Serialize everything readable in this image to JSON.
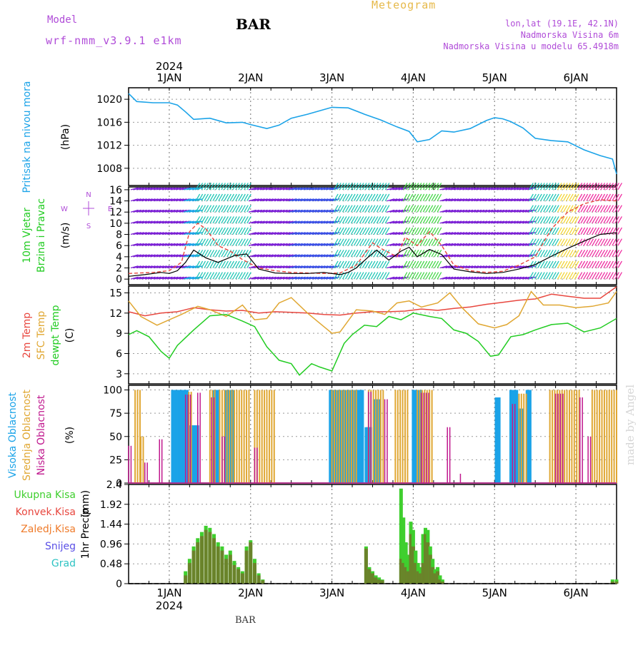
{
  "header": {
    "model_label": "Model",
    "model_name": "wrf-nmm_v3.9.1 e1km",
    "station": "BAR",
    "title": "Meteogram",
    "location": "lon,lat (19.1E, 42.1N)",
    "elevation": "Nadmorska Visina 6m",
    "model_elevation": "Nadmorska Visina u modelu 65.4918m"
  },
  "footer": {
    "station": "BAR",
    "credit": "made by Angel"
  },
  "time_axis": {
    "year": "2024",
    "day_labels": [
      "1JAN",
      "2JAN",
      "3JAN",
      "4JAN",
      "5JAN",
      "6JAN"
    ],
    "day_positions": [
      1,
      2,
      3,
      4,
      5,
      6
    ],
    "range": [
      0.5,
      6.5
    ]
  },
  "colors": {
    "pressure": "#1ba3e8",
    "wind_label": "#22cc22",
    "t2m": "#e8473f",
    "tsfc": "#e0a732",
    "dewpt": "#22cc22",
    "cloud_high": "#1ba3e8",
    "cloud_mid": "#e0a732",
    "cloud_low": "#c0188e",
    "rain_total": "#3fcf2e",
    "rain_conv": "#e8473f",
    "rain_frozen": "#ef7b2a",
    "snow": "#5a4fe6",
    "hail": "#2ec3c3",
    "compass": "#b04cd8"
  },
  "chart_data": [
    {
      "type": "line",
      "panel": "pressure",
      "ylabel_main": "Pritisak na nivou mora",
      "ylabel_unit": "(hPa)",
      "ylim": [
        1005,
        1022
      ],
      "yticks": [
        1008,
        1012,
        1016,
        1020
      ],
      "grid": true,
      "series": [
        {
          "x": [
            0.5,
            0.6,
            0.8,
            1.0,
            1.1,
            1.2,
            1.3,
            1.5,
            1.7,
            1.9,
            2.0,
            2.2,
            2.35,
            2.5,
            2.7,
            2.9,
            3.0,
            3.2,
            3.4,
            3.6,
            3.8,
            3.95,
            4.05,
            4.2,
            4.35,
            4.5,
            4.7,
            4.9,
            5.0,
            5.1,
            5.2,
            5.35,
            5.5,
            5.7,
            5.9,
            6.1,
            6.3,
            6.45,
            6.5
          ],
          "y": [
            1021,
            1019.6,
            1019.4,
            1019.4,
            1019,
            1017.8,
            1016.5,
            1016.7,
            1015.9,
            1016,
            1015.6,
            1014.9,
            1015.5,
            1016.7,
            1017.4,
            1018.2,
            1018.6,
            1018.5,
            1017.4,
            1016.4,
            1015.2,
            1014.4,
            1012.6,
            1013,
            1014.5,
            1014.3,
            1014.9,
            1016.3,
            1016.8,
            1016.6,
            1016.1,
            1015,
            1013.2,
            1012.8,
            1012.6,
            1011.2,
            1010.2,
            1009.6,
            1007
          ]
        }
      ]
    },
    {
      "type": "line",
      "panel": "wind",
      "ylabel_main": "10m Vjetar",
      "ylabel_main2": "Brzina i Pravac",
      "ylabel_unit": "(m/s)",
      "compass_n": "N",
      "compass_w": "W",
      "compass_e": "E",
      "compass_s": "S",
      "ylim": [
        -1,
        16.5
      ],
      "yticks": [
        0,
        2,
        4,
        6,
        8,
        10,
        12,
        14,
        16
      ],
      "grid": true,
      "series": [
        {
          "name": "speed",
          "x": [
            0.5,
            0.7,
            0.9,
            1.0,
            1.1,
            1.2,
            1.3,
            1.45,
            1.6,
            1.8,
            1.95,
            2.1,
            2.3,
            2.5,
            2.7,
            2.9,
            3.1,
            3.2,
            3.3,
            3.45,
            3.55,
            3.7,
            3.85,
            3.95,
            4.05,
            4.2,
            4.35,
            4.5,
            4.7,
            4.9,
            5.1,
            5.3,
            5.5,
            5.7,
            5.9,
            6.1,
            6.3,
            6.5
          ],
          "y": [
            0.5,
            0.8,
            1.2,
            1.0,
            1.5,
            3.0,
            5.2,
            3.8,
            3.0,
            4.2,
            4.5,
            1.8,
            1.1,
            1.0,
            1.0,
            1.2,
            0.8,
            1.2,
            2.0,
            4.0,
            5.2,
            3.4,
            5.0,
            5.7,
            4.0,
            5.3,
            4.4,
            1.8,
            1.3,
            1.0,
            1.2,
            1.8,
            2.6,
            4.1,
            5.5,
            6.8,
            8.0,
            8.3
          ]
        },
        {
          "name": "gust",
          "x": [
            0.5,
            0.8,
            1.0,
            1.15,
            1.25,
            1.35,
            1.45,
            1.6,
            1.75,
            1.9,
            2.1,
            2.3,
            2.5,
            2.7,
            2.9,
            3.1,
            3.3,
            3.5,
            3.6,
            3.8,
            3.9,
            4.05,
            4.2,
            4.35,
            4.5,
            4.7,
            4.9,
            5.1,
            5.3,
            5.5,
            5.7,
            5.9,
            6.1,
            6.3,
            6.5
          ],
          "y": [
            1.0,
            1.2,
            1.5,
            3.0,
            8.5,
            10.0,
            9.0,
            6.0,
            5.0,
            3.5,
            2.0,
            1.5,
            1.2,
            1.1,
            1.0,
            1.1,
            2.5,
            6.5,
            5.5,
            4.0,
            7.5,
            6.0,
            8.5,
            6.0,
            2.5,
            1.5,
            1.2,
            1.4,
            2.5,
            4.0,
            9.0,
            12.0,
            13.5,
            14.2,
            14.0
          ]
        }
      ],
      "barb_bands": [
        {
          "x0": 0.5,
          "x1": 1.15,
          "color": "#7b1fd6"
        },
        {
          "x0": 1.15,
          "x1": 1.3,
          "color": "#1ba3e8"
        },
        {
          "x0": 1.3,
          "x1": 1.95,
          "color": "#22c7b6"
        },
        {
          "x0": 1.95,
          "x1": 2.45,
          "color": "#7b1fd6"
        },
        {
          "x0": 2.45,
          "x1": 3.0,
          "color": "#3a4fe6"
        },
        {
          "x0": 3.0,
          "x1": 3.65,
          "color": "#22c7b6"
        },
        {
          "x0": 3.65,
          "x1": 3.85,
          "color": "#7b1fd6"
        },
        {
          "x0": 3.85,
          "x1": 4.3,
          "color": "#46d84a"
        },
        {
          "x0": 4.3,
          "x1": 5.4,
          "color": "#7b1fd6"
        },
        {
          "x0": 5.4,
          "x1": 5.75,
          "color": "#22c7b6"
        },
        {
          "x0": 5.75,
          "x1": 6.0,
          "color": "#f2d63a"
        },
        {
          "x0": 6.0,
          "x1": 6.5,
          "color": "#ef2fa2"
        }
      ]
    },
    {
      "type": "line",
      "panel": "temperature",
      "ylabel_main": "2m Temp",
      "ylabel_main2": "SFC Temp",
      "ylabel_main3": "dewpt Temp",
      "ylabel_unit": "(C)",
      "ylim": [
        1.5,
        16
      ],
      "yticks": [
        3,
        6,
        9,
        12,
        15
      ],
      "grid": true,
      "series": [
        {
          "name": "2m",
          "x": [
            0.5,
            0.7,
            0.9,
            1.1,
            1.3,
            1.5,
            1.7,
            1.9,
            2.1,
            2.3,
            2.5,
            2.7,
            2.9,
            3.1,
            3.3,
            3.5,
            3.7,
            3.9,
            4.1,
            4.3,
            4.5,
            4.7,
            4.9,
            5.1,
            5.3,
            5.5,
            5.7,
            5.9,
            6.1,
            6.3,
            6.5
          ],
          "y": [
            12.2,
            11.6,
            12.0,
            12.2,
            12.8,
            12.5,
            12.3,
            12.4,
            12.0,
            12.2,
            12.1,
            12.0,
            11.8,
            11.7,
            12.0,
            12.2,
            12.2,
            12.3,
            12.6,
            12.4,
            12.7,
            12.9,
            13.3,
            13.6,
            13.9,
            14.1,
            14.8,
            14.5,
            14.2,
            14.2,
            15.9
          ]
        },
        {
          "name": "sfc",
          "x": [
            0.5,
            0.65,
            0.85,
            1.0,
            1.15,
            1.35,
            1.5,
            1.7,
            1.9,
            2.05,
            2.2,
            2.35,
            2.5,
            2.7,
            2.9,
            3.0,
            3.1,
            3.3,
            3.5,
            3.65,
            3.8,
            3.95,
            4.1,
            4.3,
            4.45,
            4.6,
            4.8,
            5.0,
            5.15,
            5.3,
            5.45,
            5.6,
            5.8,
            6.0,
            6.2,
            6.4,
            6.5
          ],
          "y": [
            13.8,
            11.5,
            10.2,
            11.0,
            11.8,
            13.0,
            12.5,
            11.5,
            13.2,
            11.0,
            11.2,
            13.5,
            14.3,
            12.0,
            10.0,
            9.0,
            9.2,
            12.5,
            12.3,
            11.8,
            13.5,
            13.8,
            12.9,
            13.5,
            15.0,
            12.8,
            10.4,
            9.8,
            10.3,
            11.6,
            15.2,
            13.2,
            13.2,
            12.8,
            13.0,
            13.5,
            15.2
          ]
        },
        {
          "name": "dewpt",
          "x": [
            0.5,
            0.6,
            0.75,
            0.9,
            1.0,
            1.1,
            1.3,
            1.5,
            1.7,
            1.9,
            2.05,
            2.2,
            2.35,
            2.5,
            2.6,
            2.75,
            2.85,
            3.0,
            3.15,
            3.25,
            3.4,
            3.55,
            3.7,
            3.85,
            4.0,
            4.2,
            4.35,
            4.5,
            4.65,
            4.8,
            4.95,
            5.05,
            5.2,
            5.35,
            5.5,
            5.7,
            5.9,
            6.1,
            6.3,
            6.5
          ],
          "y": [
            8.8,
            9.4,
            8.5,
            6.3,
            5.3,
            7.2,
            9.5,
            11.6,
            11.8,
            10.8,
            10.0,
            7.0,
            5.0,
            4.5,
            2.8,
            4.5,
            4.0,
            3.4,
            7.5,
            8.8,
            10.2,
            10.0,
            11.5,
            11.0,
            12.0,
            11.5,
            11.2,
            9.5,
            9.0,
            7.8,
            5.6,
            5.8,
            8.5,
            8.8,
            9.5,
            10.3,
            10.5,
            9.2,
            9.8,
            11.2
          ]
        }
      ]
    },
    {
      "type": "bar",
      "panel": "cloud",
      "ylabel_main": "Visoka Oblacnost",
      "ylabel_main2": "Srednja Oblacnost",
      "ylabel_main3": "Niska  Oblacnost",
      "ylabel_unit": "(%)",
      "ylim": [
        0,
        105
      ],
      "yticks": [
        0,
        25,
        50,
        75,
        100
      ],
      "grid": true,
      "series": [
        {
          "name": "high",
          "segments": [
            [
              1.04,
              1.22,
              100
            ],
            [
              1.26,
              1.36,
              62
            ],
            [
              1.55,
              1.62,
              100
            ],
            [
              1.7,
              1.8,
              100
            ],
            [
              2.98,
              3.38,
              100
            ],
            [
              3.42,
              3.48,
              60
            ],
            [
              3.52,
              3.58,
              90
            ],
            [
              4.0,
              4.1,
              100
            ],
            [
              5.02,
              5.06,
              92
            ],
            [
              5.2,
              5.28,
              100
            ],
            [
              5.3,
              5.35,
              80
            ],
            [
              5.4,
              5.45,
              100
            ]
          ]
        },
        {
          "name": "mid",
          "segments": [
            [
              0.58,
              0.64,
              100
            ],
            [
              0.65,
              0.68,
              50
            ],
            [
              1.24,
              1.29,
              98
            ],
            [
              1.5,
              1.58,
              100
            ],
            [
              1.62,
              2.0,
              100
            ],
            [
              2.05,
              2.3,
              100
            ],
            [
              3.0,
              3.32,
              100
            ],
            [
              3.45,
              3.65,
              100
            ],
            [
              3.78,
              3.95,
              100
            ],
            [
              4.05,
              4.25,
              100
            ],
            [
              5.3,
              5.4,
              96
            ],
            [
              5.68,
              6.05,
              100
            ],
            [
              6.2,
              6.5,
              100
            ]
          ]
        },
        {
          "name": "low",
          "segments": [
            [
              0.5,
              0.55,
              40
            ],
            [
              0.7,
              0.74,
              22
            ],
            [
              0.88,
              0.92,
              47
            ],
            [
              1.2,
              1.26,
              95
            ],
            [
              1.35,
              1.4,
              97
            ],
            [
              1.52,
              1.56,
              92
            ],
            [
              1.65,
              1.7,
              50
            ],
            [
              2.05,
              2.1,
              38
            ],
            [
              3.45,
              3.5,
              98
            ],
            [
              3.65,
              3.7,
              90
            ],
            [
              4.1,
              4.2,
              97
            ],
            [
              4.42,
              4.45,
              60
            ],
            [
              4.58,
              4.6,
              10
            ],
            [
              5.22,
              5.25,
              85
            ],
            [
              5.75,
              5.85,
              96
            ],
            [
              6.05,
              6.1,
              92
            ],
            [
              6.15,
              6.2,
              50
            ]
          ]
        }
      ]
    },
    {
      "type": "bar",
      "panel": "precip",
      "ylabel_main": "1hr Precip",
      "ylabel_unit": "(mm)",
      "legend": [
        "Ukupna  Kisa",
        "Konvek.Kisa",
        "Zaledj.Kisa",
        "Snijeg",
        "Grad"
      ],
      "ylim": [
        0,
        2.4
      ],
      "yticks": [
        0,
        0.48,
        0.96,
        1.44,
        1.92,
        2.4
      ],
      "grid": true,
      "x": [
        1.2,
        1.25,
        1.3,
        1.35,
        1.4,
        1.45,
        1.5,
        1.55,
        1.6,
        1.65,
        1.7,
        1.75,
        1.8,
        1.85,
        1.9,
        1.95,
        2.0,
        2.05,
        2.1,
        2.15,
        3.42,
        3.46,
        3.5,
        3.54,
        3.58,
        3.62,
        3.85,
        3.88,
        3.91,
        3.94,
        3.97,
        4.0,
        4.03,
        4.06,
        4.09,
        4.12,
        4.15,
        4.18,
        4.21,
        4.24,
        4.27,
        4.3,
        4.33,
        4.36,
        6.45,
        6.5
      ],
      "total": [
        0.3,
        0.6,
        0.9,
        1.1,
        1.25,
        1.4,
        1.35,
        1.2,
        1.0,
        0.9,
        0.7,
        0.8,
        0.55,
        0.4,
        0.3,
        0.9,
        1.05,
        0.6,
        0.25,
        0.1,
        0.9,
        0.4,
        0.3,
        0.2,
        0.15,
        0.1,
        2.3,
        1.6,
        1.0,
        0.7,
        1.5,
        1.3,
        0.8,
        0.5,
        0.4,
        1.2,
        1.35,
        1.3,
        0.9,
        0.6,
        0.35,
        0.4,
        0.2,
        0.1,
        0.1,
        0.1
      ],
      "convective": [
        0.2,
        0.5,
        0.8,
        1.0,
        1.15,
        1.3,
        1.25,
        1.1,
        0.9,
        0.8,
        0.6,
        0.7,
        0.45,
        0.35,
        0.25,
        0.8,
        1.0,
        0.5,
        0.2,
        0.08,
        0.85,
        0.35,
        0.25,
        0.15,
        0.1,
        0.08,
        0.6,
        0.5,
        0.4,
        0.3,
        1.2,
        0.9,
        0.5,
        0.3,
        0.25,
        0.5,
        1.2,
        1.0,
        0.7,
        0.4,
        0.25,
        0.3,
        0.1,
        0.05,
        0.05,
        0.05
      ]
    }
  ]
}
